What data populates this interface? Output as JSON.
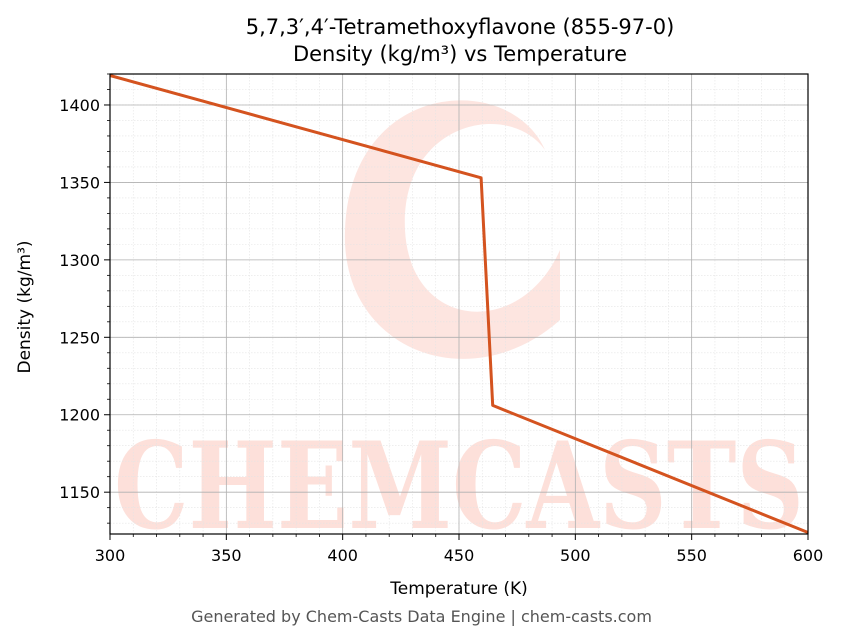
{
  "chart_data": {
    "type": "line",
    "title_line1": "5,7,3′,4′-Tetramethoxyflavone (855-97-0)",
    "title_line2": "Density (kg/m³) vs Temperature",
    "xlabel": "Temperature (K)",
    "ylabel": "Density (kg/m³)",
    "xlim": [
      300,
      600
    ],
    "ylim": [
      1123,
      1420
    ],
    "xticks": [
      300,
      350,
      400,
      450,
      500,
      550,
      600
    ],
    "yticks": [
      1150,
      1200,
      1250,
      1300,
      1350,
      1400
    ],
    "grid": true,
    "series": [
      {
        "color": "#d4531f",
        "x": [
          300,
          459.5,
          464.5,
          600
        ],
        "y": [
          1419,
          1353,
          1206,
          1124
        ]
      }
    ]
  },
  "watermark": {
    "text": "CHEMCASTS",
    "color": "#fde0da"
  },
  "footer": "Generated by Chem-Casts Data Engine | chem-casts.com"
}
